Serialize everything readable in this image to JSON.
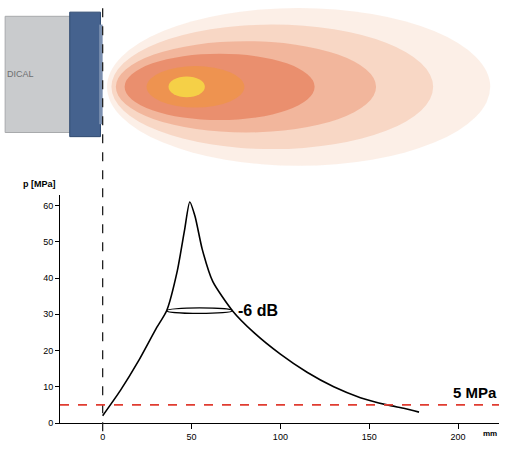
{
  "chart_data": {
    "type": "line",
    "x": [
      0,
      10,
      20,
      30,
      36,
      42,
      46,
      49,
      52,
      56,
      62,
      73,
      85,
      100,
      115,
      130,
      145,
      160,
      170,
      178
    ],
    "values": [
      2,
      9,
      17,
      26,
      31,
      42,
      53,
      61,
      57,
      48,
      39,
      31,
      25,
      19,
      14,
      10,
      7,
      5,
      4,
      3
    ],
    "color": "#000000",
    "x_label": "mm",
    "y_label": "p [MPa]",
    "xlim": [
      -24,
      223
    ],
    "xticks": [
      0,
      50,
      100,
      150,
      200
    ],
    "ylim": [
      0,
      63
    ],
    "yticks": [
      0,
      10,
      20,
      30,
      40,
      50,
      60
    ],
    "grid": false,
    "threshold": {
      "value": 5,
      "label": "5 MPa",
      "color": "#e03c31"
    },
    "minus_6db": {
      "x": [
        36,
        73
      ],
      "value": 31,
      "label": "-6 dB"
    },
    "transducer_face_x": 0,
    "device_label": "DICAL"
  }
}
